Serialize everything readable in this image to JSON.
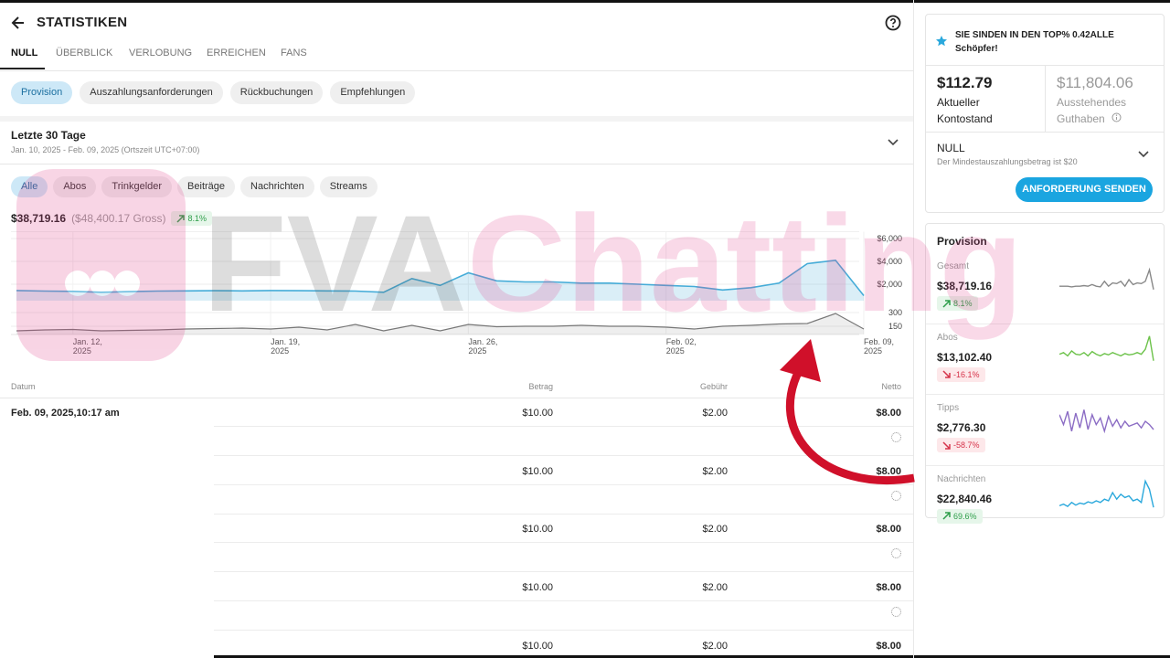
{
  "header": {
    "title": "STATISTIKEN"
  },
  "tabs": {
    "items": [
      "NULL",
      "ÜBERBLICK",
      "VERLOBUNG",
      "ERREICHEN",
      "FANS"
    ],
    "active": 0
  },
  "subtabs": {
    "items": [
      "Provision",
      "Auszahlungsanforderungen",
      "Rückbuchungen",
      "Empfehlungen"
    ],
    "active": 0
  },
  "period": {
    "title": "Letzte 30 Tage",
    "range": "Jan. 10, 2025 - Feb. 09, 2025 (Ortszeit UTC+07:00)"
  },
  "filters": {
    "items": [
      "Alle",
      "Abos",
      "Trinkgelder",
      "Beiträge",
      "Nachrichten",
      "Streams"
    ],
    "active": 0
  },
  "summary": {
    "net": "$38,719.16",
    "gross": "($48,400.17 Gross)",
    "change": "8.1%",
    "trend": "up"
  },
  "chart_data": {
    "type": "line",
    "categories": [
      null,
      null,
      "Jan. 12, 2025",
      null,
      null,
      null,
      null,
      null,
      null,
      "Jan. 19, 2025",
      null,
      null,
      null,
      null,
      null,
      null,
      "Jan. 26, 2025",
      null,
      null,
      null,
      null,
      null,
      null,
      "Feb. 02, 2025",
      null,
      null,
      null,
      null,
      null,
      null,
      "Feb. 09, 2025"
    ],
    "series": [
      {
        "color": "#45acd8",
        "values": [
          1450,
          1400,
          1380,
          1300,
          1350,
          1400,
          1420,
          1430,
          1420,
          1450,
          1430,
          1420,
          1400,
          1300,
          2500,
          1900,
          3000,
          2300,
          2200,
          2200,
          2100,
          2100,
          2000,
          1900,
          1800,
          1500,
          1700,
          2100,
          3800,
          4100,
          1000
        ]
      },
      {
        "color": "#777777",
        "axis": "y2",
        "values": [
          100,
          110,
          115,
          100,
          105,
          110,
          120,
          125,
          130,
          120,
          140,
          110,
          170,
          100,
          160,
          100,
          170,
          145,
          150,
          150,
          160,
          150,
          150,
          140,
          120,
          150,
          160,
          175,
          180,
          290,
          120
        ]
      }
    ],
    "ylim": [
      0,
      6600
    ],
    "yticks": [
      {
        "value": 6000,
        "label": "$6,000"
      },
      {
        "value": 4000,
        "label": "$4,000"
      },
      {
        "value": 2000,
        "label": "$2,000"
      }
    ],
    "y2lim": [
      60,
      300
    ],
    "y2ticks": [
      300,
      150
    ],
    "grid": true
  },
  "watermark": {
    "part1": "FVA",
    "part2": "Chatting"
  },
  "table": {
    "columns": [
      "Datum",
      "Betrag",
      "Gebühr",
      "Netto"
    ],
    "rows": [
      [
        "Feb. 09, 2025,10:17 am",
        "$10.00",
        "$2.00",
        "$8.00"
      ],
      [
        null,
        "$10.00",
        "$2.00",
        "$8.00"
      ],
      [
        null,
        "$10.00",
        "$2.00",
        "$8.00"
      ],
      [
        null,
        "$10.00",
        "$2.00",
        "$8.00"
      ],
      [
        null,
        "$10.00",
        "$2.00",
        "$8.00"
      ]
    ]
  },
  "sidebar": {
    "rank": "SIE SINDEN IN DEN TOP% 0.42ALLE Schöpfer!",
    "balance": {
      "amount": "$112.79",
      "label": "Aktueller Kontostand"
    },
    "pending": {
      "amount": "$11,804.06",
      "label": "Ausstehendes Guthaben"
    },
    "method": "NULL",
    "minimum": "Der Mindestauszahlungsbetrag ist $20",
    "button": "ANFORDERUNG SENDEN"
  },
  "provision": {
    "title": "Provision",
    "items": [
      {
        "label": "Gesamt",
        "amount": "$38,719.16",
        "change": "8.1%",
        "trend": "up",
        "color": "#888888",
        "spark": [
          30,
          30,
          30,
          28,
          30,
          30,
          32,
          30,
          35,
          30,
          28,
          45,
          30,
          40,
          38,
          45,
          30,
          50,
          35,
          40,
          38,
          45,
          80,
          20
        ]
      },
      {
        "label": "Abos",
        "amount": "$13,102.40",
        "change": "-16.1%",
        "trend": "down",
        "color": "#6cc24a",
        "spark": [
          40,
          45,
          35,
          50,
          40,
          38,
          45,
          35,
          48,
          40,
          35,
          42,
          38,
          45,
          40,
          35,
          42,
          38,
          40,
          45,
          40,
          55,
          95,
          20
        ]
      },
      {
        "label": "Tipps",
        "amount": "$2,776.30",
        "change": "-58.7%",
        "trend": "down",
        "color": "#8b6cc4",
        "spark": [
          70,
          40,
          80,
          20,
          75,
          30,
          85,
          25,
          70,
          40,
          60,
          20,
          65,
          35,
          55,
          30,
          50,
          35,
          40,
          45,
          30,
          50,
          40,
          25
        ]
      },
      {
        "label": "Nachrichten",
        "amount": "$22,840.46",
        "change": "69.6%",
        "trend": "up",
        "color": "#2aa8dc",
        "spark": [
          10,
          15,
          8,
          20,
          12,
          18,
          15,
          22,
          18,
          25,
          20,
          30,
          25,
          50,
          30,
          45,
          35,
          40,
          25,
          30,
          20,
          85,
          60,
          5
        ]
      }
    ]
  }
}
